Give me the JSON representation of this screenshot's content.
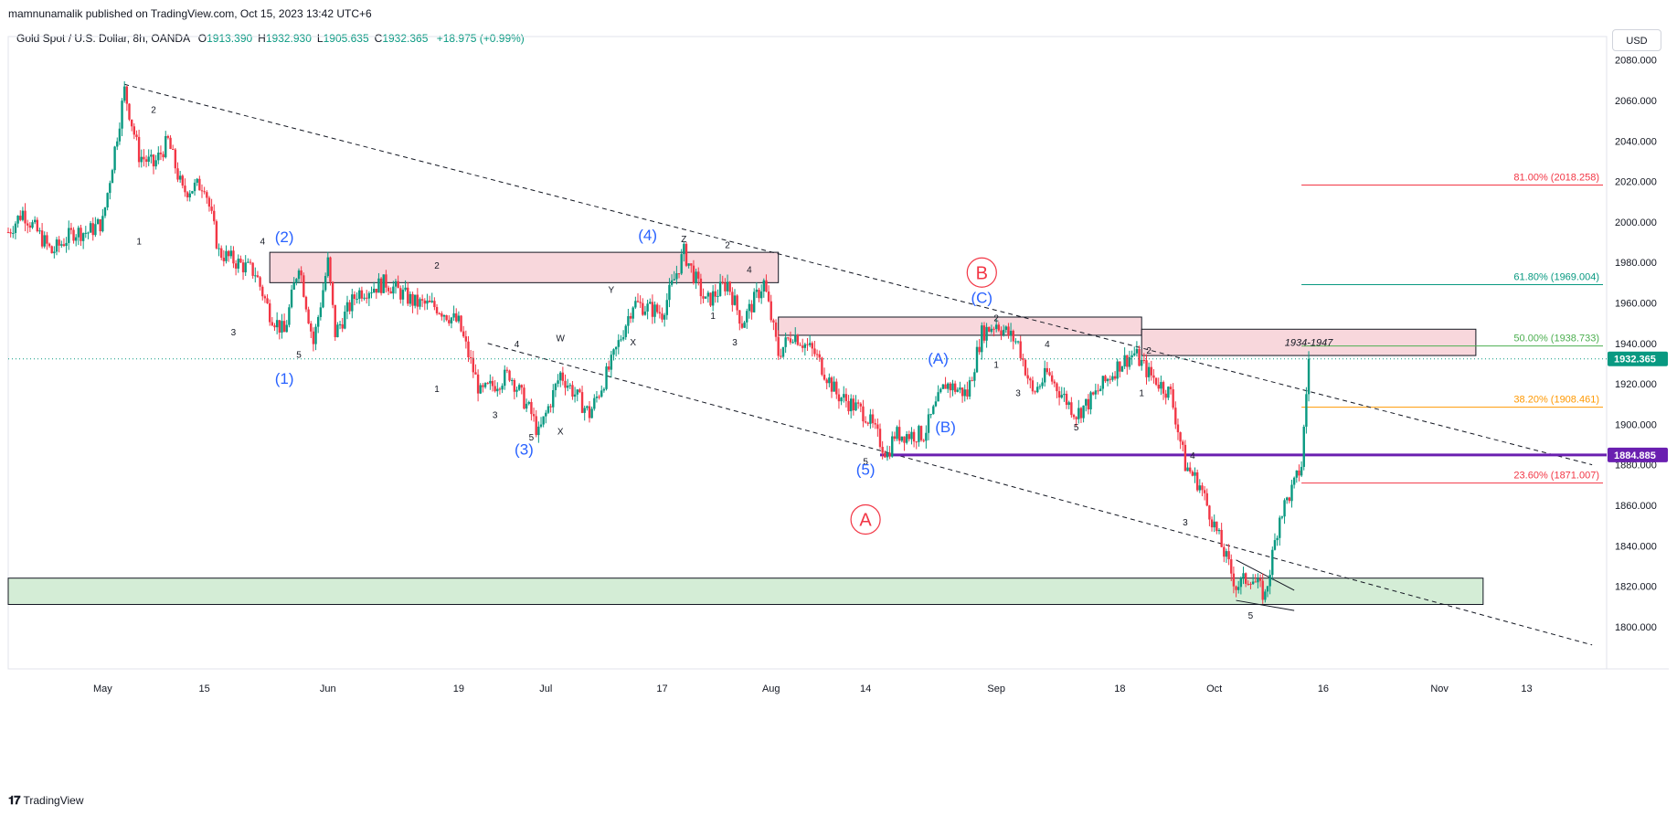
{
  "header": {
    "published_by": "mamnunamalik published on TradingView.com, Oct 15, 2023 13:42 UTC+6",
    "symbol": "Gold Spot / U.S. Dollar, 8h, OANDA",
    "ohlc": [
      {
        "key": "O",
        "value": "1913.390"
      },
      {
        "key": "H",
        "value": "1932.930"
      },
      {
        "key": "L",
        "value": "1905.635"
      },
      {
        "key": "C",
        "value": "1932.365"
      }
    ],
    "change": "+18.975 (+0.99%)",
    "currency_button": "USD"
  },
  "footer": {
    "brand": "TradingView"
  },
  "colors": {
    "up": "#089981",
    "down": "#f23645",
    "wave_blue": "#2962ff",
    "abc_red": "#f23645",
    "pivot_line": "#6a1fb0",
    "resistance_zone": "#f8d7dc",
    "support_zone": "#d4edd6"
  },
  "chart_data": {
    "type": "candlestick",
    "timeframe": "8h",
    "ylim": [
      1790,
      2088
    ],
    "y_ticks": [
      "2080.000",
      "2060.000",
      "2040.000",
      "2020.000",
      "2000.000",
      "1980.000",
      "1960.000",
      "1940.000",
      "1920.000",
      "1900.000",
      "1880.000",
      "1860.000",
      "1840.000",
      "1820.000",
      "1800.000"
    ],
    "x_ticks": [
      "May",
      "15",
      "Jun",
      "19",
      "Jul",
      "17",
      "Aug",
      "14",
      "Sep",
      "18",
      "Oct",
      "16",
      "Nov",
      "13"
    ],
    "x_tick_dates": [
      "2023-05-01",
      "2023-05-15",
      "2023-06-01",
      "2023-06-19",
      "2023-07-01",
      "2023-07-17",
      "2023-08-01",
      "2023-08-14",
      "2023-09-01",
      "2023-09-18",
      "2023-10-01",
      "2023-10-16",
      "2023-11-01",
      "2023-11-13"
    ],
    "price_path": [
      [
        "2023-04-18",
        1995
      ],
      [
        "2023-04-20",
        2005
      ],
      [
        "2023-04-24",
        1985
      ],
      [
        "2023-04-27",
        1995
      ],
      [
        "2023-04-29",
        1995
      ],
      [
        "2023-05-01",
        2000
      ],
      [
        "2023-05-04",
        2065
      ],
      [
        "2023-05-06",
        2033
      ],
      [
        "2023-05-08",
        2028
      ],
      [
        "2023-05-10",
        2040
      ],
      [
        "2023-05-12",
        2015
      ],
      [
        "2023-05-15",
        2019
      ],
      [
        "2023-05-17",
        1985
      ],
      [
        "2023-05-22",
        1975
      ],
      [
        "2023-05-24",
        1955
      ],
      [
        "2023-05-26",
        1945
      ],
      [
        "2023-05-28",
        1980
      ],
      [
        "2023-05-30",
        1940
      ],
      [
        "2023-06-01",
        1980
      ],
      [
        "2023-06-02",
        1945
      ],
      [
        "2023-06-05",
        1965
      ],
      [
        "2023-06-09",
        1970
      ],
      [
        "2023-06-13",
        1960
      ],
      [
        "2023-06-16",
        1958
      ],
      [
        "2023-06-19",
        1950
      ],
      [
        "2023-06-22",
        1915
      ],
      [
        "2023-06-26",
        1925
      ],
      [
        "2023-06-29",
        1905
      ],
      [
        "2023-06-30",
        1895
      ],
      [
        "2023-07-03",
        1925
      ],
      [
        "2023-07-06",
        1910
      ],
      [
        "2023-07-07",
        1905
      ],
      [
        "2023-07-10",
        1930
      ],
      [
        "2023-07-13",
        1960
      ],
      [
        "2023-07-17",
        1955
      ],
      [
        "2023-07-20",
        1985
      ],
      [
        "2023-07-23",
        1960
      ],
      [
        "2023-07-26",
        1970
      ],
      [
        "2023-07-28",
        1950
      ],
      [
        "2023-07-31",
        1970
      ],
      [
        "2023-08-02",
        1935
      ],
      [
        "2023-08-04",
        1945
      ],
      [
        "2023-08-07",
        1935
      ],
      [
        "2023-08-10",
        1915
      ],
      [
        "2023-08-14",
        1905
      ],
      [
        "2023-08-17",
        1885
      ],
      [
        "2023-08-18",
        1895
      ],
      [
        "2023-08-22",
        1895
      ],
      [
        "2023-08-25",
        1920
      ],
      [
        "2023-08-28",
        1915
      ],
      [
        "2023-08-30",
        1945
      ],
      [
        "2023-09-01",
        1950
      ],
      [
        "2023-09-04",
        1940
      ],
      [
        "2023-09-06",
        1915
      ],
      [
        "2023-09-08",
        1925
      ],
      [
        "2023-09-12",
        1905
      ],
      [
        "2023-09-14",
        1912
      ],
      [
        "2023-09-18",
        1930
      ],
      [
        "2023-09-20",
        1935
      ],
      [
        "2023-09-22",
        1925
      ],
      [
        "2023-09-25",
        1915
      ],
      [
        "2023-09-27",
        1880
      ],
      [
        "2023-09-29",
        1870
      ],
      [
        "2023-10-02",
        1840
      ],
      [
        "2023-10-04",
        1820
      ],
      [
        "2023-10-06",
        1825
      ],
      [
        "2023-10-08",
        1815
      ],
      [
        "2023-10-10",
        1855
      ],
      [
        "2023-10-12",
        1870
      ],
      [
        "2023-10-13",
        1880
      ],
      [
        "2023-10-14",
        1932.365
      ]
    ],
    "last_price": "1932.365",
    "level_marker": "1884.885",
    "fib_levels": [
      {
        "label": "81.00% (2018.258)",
        "value": 2018.258,
        "color": "#f23645"
      },
      {
        "label": "61.80% (1969.004)",
        "value": 1969.004,
        "color": "#089981"
      },
      {
        "label": "50.00% (1938.733)",
        "value": 1938.733,
        "color": "#4caf50"
      },
      {
        "label": "38.20% (1908.461)",
        "value": 1908.461,
        "color": "#ff9800"
      },
      {
        "label": "23.60% (1871.007)",
        "value": 1871.007,
        "color": "#f23645"
      }
    ],
    "zones": [
      {
        "from": "2023-05-24",
        "to": "2023-08-02",
        "low": 1970,
        "high": 1985,
        "color": "#f8d7dc",
        "label": ""
      },
      {
        "from": "2023-08-02",
        "to": "2023-09-21",
        "low": 1944,
        "high": 1953,
        "color": "#f8d7dc",
        "label": ""
      },
      {
        "from": "2023-09-21",
        "to": "2023-11-06",
        "low": 1934,
        "high": 1947,
        "color": "#f8d7dc",
        "label": "1934-1947"
      },
      {
        "from": "2023-04-18",
        "to": "2023-11-07",
        "low": 1811,
        "high": 1824,
        "color": "#d4edd6",
        "label": ""
      }
    ],
    "trendlines": [
      {
        "from": [
          "2023-05-04",
          2068
        ],
        "to": [
          "2023-11-22",
          1880
        ]
      },
      {
        "from": [
          "2023-06-23",
          1940
        ],
        "to": [
          "2023-11-22",
          1791
        ]
      }
    ],
    "wave_labels_small": [
      {
        "t": "2",
        "d": "2023-05-08",
        "p": 2054
      },
      {
        "t": "1",
        "d": "2023-05-06",
        "p": 1989
      },
      {
        "t": "4",
        "d": "2023-05-23",
        "p": 1989
      },
      {
        "t": "3",
        "d": "2023-05-19",
        "p": 1944
      },
      {
        "t": "5",
        "d": "2023-05-28",
        "p": 1933
      },
      {
        "t": "2",
        "d": "2023-06-16",
        "p": 1977
      },
      {
        "t": "1",
        "d": "2023-06-16",
        "p": 1916
      },
      {
        "t": "4",
        "d": "2023-06-27",
        "p": 1938
      },
      {
        "t": "3",
        "d": "2023-06-24",
        "p": 1903
      },
      {
        "t": "5",
        "d": "2023-06-29",
        "p": 1892
      },
      {
        "t": "W",
        "d": "2023-07-03",
        "p": 1941
      },
      {
        "t": "X",
        "d": "2023-07-03",
        "p": 1895
      },
      {
        "t": "Y",
        "d": "2023-07-10",
        "p": 1965
      },
      {
        "t": "X",
        "d": "2023-07-13",
        "p": 1939
      },
      {
        "t": "Z",
        "d": "2023-07-20",
        "p": 1990
      },
      {
        "t": "2",
        "d": "2023-07-26",
        "p": 1987
      },
      {
        "t": "4",
        "d": "2023-07-29",
        "p": 1975
      },
      {
        "t": "1",
        "d": "2023-07-24",
        "p": 1952
      },
      {
        "t": "3",
        "d": "2023-07-27",
        "p": 1939
      },
      {
        "t": "5",
        "d": "2023-08-14",
        "p": 1880
      },
      {
        "t": "2",
        "d": "2023-09-01",
        "p": 1951
      },
      {
        "t": "1",
        "d": "2023-09-01",
        "p": 1928
      },
      {
        "t": "4",
        "d": "2023-09-08",
        "p": 1938
      },
      {
        "t": "3",
        "d": "2023-09-04",
        "p": 1914
      },
      {
        "t": "5",
        "d": "2023-09-12",
        "p": 1897
      },
      {
        "t": "2",
        "d": "2023-09-22",
        "p": 1935
      },
      {
        "t": "1",
        "d": "2023-09-21",
        "p": 1914
      },
      {
        "t": "4",
        "d": "2023-09-28",
        "p": 1883
      },
      {
        "t": "3",
        "d": "2023-09-27",
        "p": 1850
      },
      {
        "t": "5",
        "d": "2023-10-06",
        "p": 1804
      }
    ],
    "wave_labels_blue": [
      {
        "t": "(2)",
        "d": "2023-05-26",
        "p": 1990
      },
      {
        "t": "(1)",
        "d": "2023-05-26",
        "p": 1920
      },
      {
        "t": "(3)",
        "d": "2023-06-28",
        "p": 1885
      },
      {
        "t": "(4)",
        "d": "2023-07-15",
        "p": 1991
      },
      {
        "t": "(5)",
        "d": "2023-08-14",
        "p": 1875
      },
      {
        "t": "(A)",
        "d": "2023-08-24",
        "p": 1930
      },
      {
        "t": "(B)",
        "d": "2023-08-25",
        "p": 1896
      },
      {
        "t": "(C)",
        "d": "2023-08-30",
        "p": 1960
      }
    ],
    "abc_circles": [
      {
        "t": "B",
        "d": "2023-08-30",
        "p": 1975
      },
      {
        "t": "A",
        "d": "2023-08-14",
        "p": 1853
      }
    ]
  }
}
